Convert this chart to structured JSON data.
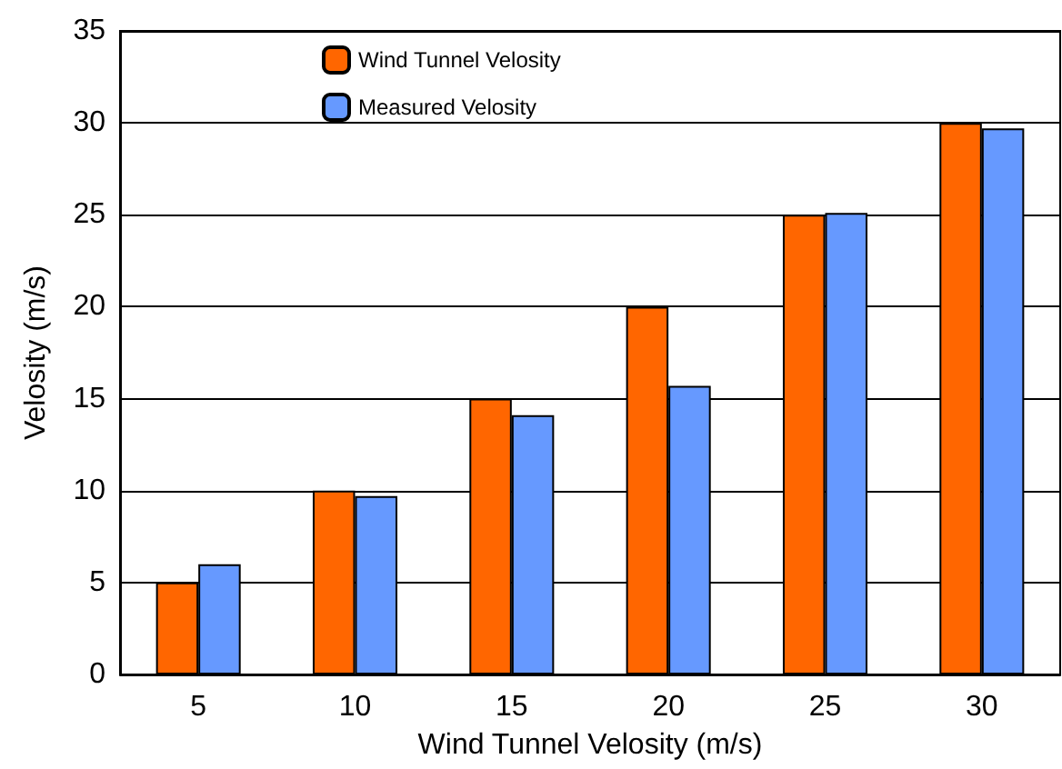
{
  "chart_data": {
    "type": "bar",
    "xlabel": "Wind Tunnel Velosity (m/s)",
    "ylabel": "Velosity (m/s)",
    "categories": [
      "5",
      "10",
      "15",
      "20",
      "25",
      "30"
    ],
    "series": [
      {
        "name": "Wind Tunnel Velosity",
        "color": "#ff6600",
        "values": [
          5,
          10,
          15,
          20,
          25,
          30
        ]
      },
      {
        "name": "Measured Velosity",
        "color": "#6699ff",
        "values": [
          6.0,
          9.7,
          14.1,
          15.7,
          25.1,
          29.7
        ]
      }
    ],
    "ylim": [
      0,
      35
    ],
    "yticks": [
      0,
      5,
      10,
      15,
      20,
      25,
      30,
      35
    ],
    "grid": "y",
    "legend": "top left"
  }
}
